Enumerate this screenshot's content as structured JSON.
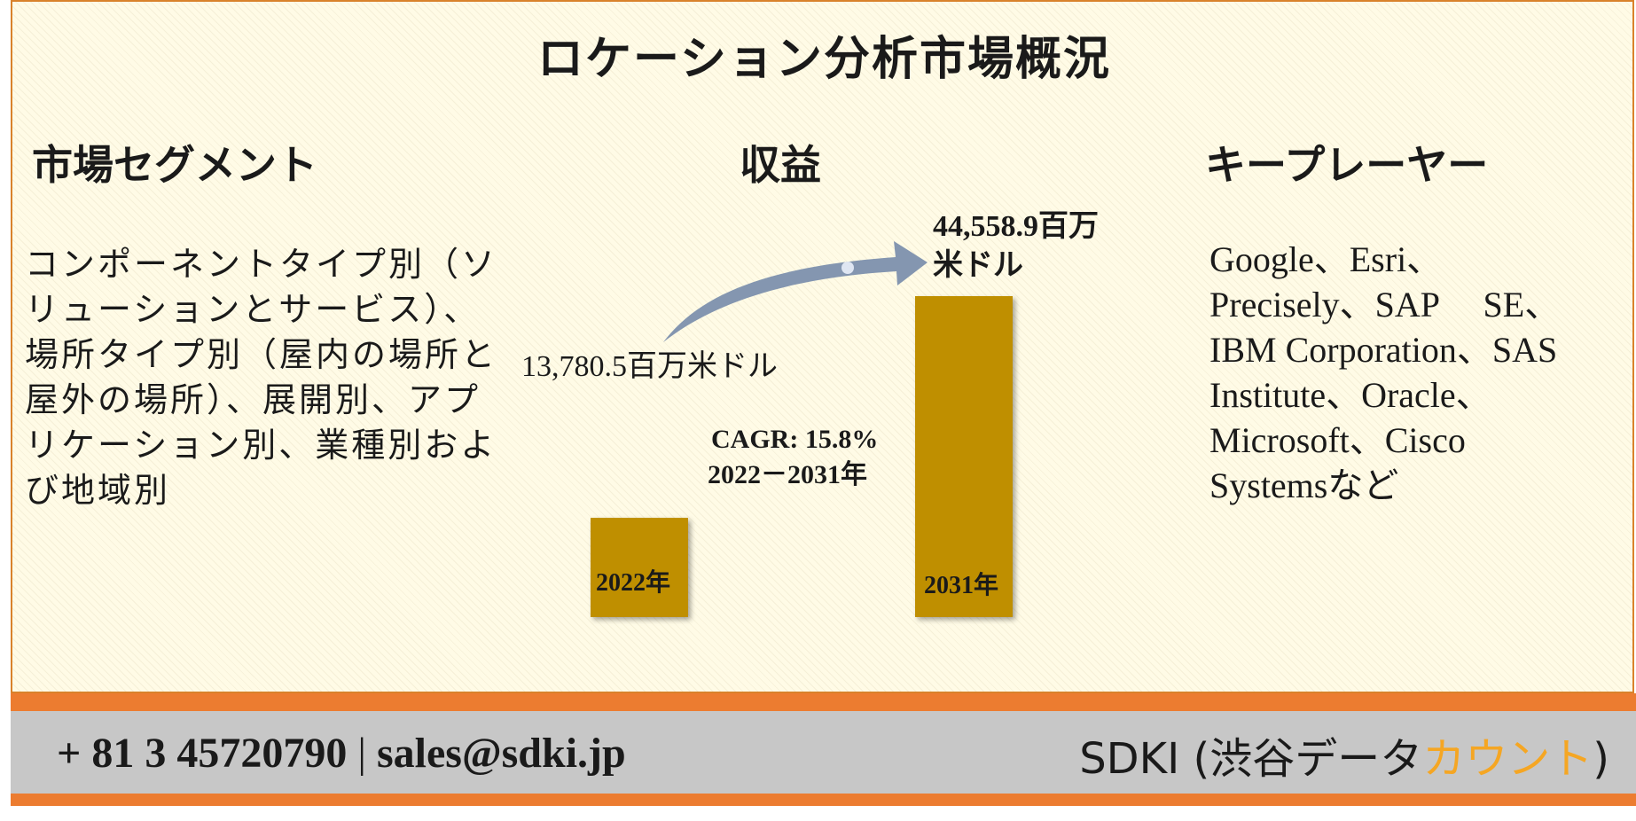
{
  "title": "ロケーション分析市場概況",
  "sections": {
    "segments_heading": "市場セグメント",
    "revenue_heading": "収益",
    "players_heading": "キープレーヤー"
  },
  "segments_text": "コンポーネントタイプ別（ソリューションとサービス）、場所タイプ別（屋内の場所と屋外の場所）、展開別、アプリケーション別、業種別および地域別",
  "players_lines": [
    "Google、Esri、",
    "Precisely、SAP　 SE、",
    "IBM Corporation、SAS",
    "Institute、Oracle、",
    "Microsoft、Cisco",
    "Systemsなど"
  ],
  "chart_data": {
    "type": "bar",
    "categories": [
      "2022年",
      "2031年"
    ],
    "values": [
      13780.5,
      44558.9
    ],
    "value_labels": [
      "13,780.5百万米ドル",
      "44,558.9百万"
    ],
    "value_label_line2": "米ドル",
    "cagr_label": "CAGR: 15.8%",
    "cagr_period": "2022－2031年",
    "bar_color": "#bf8f00",
    "arrow_color": "#8496b0"
  },
  "footer": {
    "phone": "+ 81 3 45720790",
    "separator": "|",
    "email": "sales@sdki.jp",
    "brand_main": "SDKI (渋谷データ",
    "brand_accent": "カウント",
    "brand_close": ")"
  },
  "colors": {
    "panel_border": "#d9822b",
    "footer_orange": "#ec7c30",
    "footer_gray": "#c7c7c7",
    "accent_text": "#f5a623"
  }
}
